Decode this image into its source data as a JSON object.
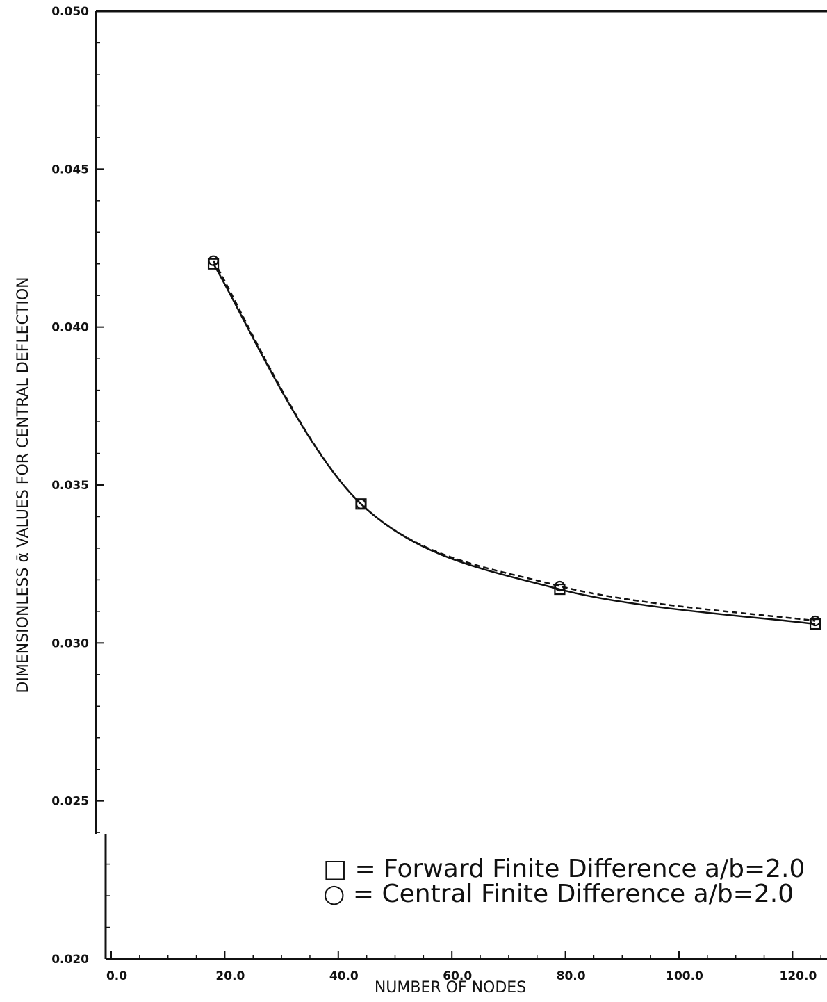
{
  "chart_data": {
    "type": "line",
    "title": "",
    "xlabel": "NUMBER OF NODES",
    "ylabel": "DIMENSIONLESS ᾱ VALUES FOR CENTRAL DEFLECTION",
    "xlim": [
      0,
      124
    ],
    "ylim": [
      0.02,
      0.05
    ],
    "x_ticks": [
      "0.0",
      "20.0",
      "40.0",
      "60.0",
      "80.0",
      "100.0",
      "120.0"
    ],
    "y_ticks": [
      "0.020",
      "0.025",
      "0.030",
      "0.035",
      "0.040",
      "0.045",
      "0.050"
    ],
    "grid": false,
    "legend_position": "bottom-right",
    "series": [
      {
        "name": "□ = Forward Finite Difference a/b=2.0",
        "marker": "square",
        "line_style": "solid",
        "x": [
          18,
          44,
          79,
          124
        ],
        "y": [
          0.042,
          0.0344,
          0.0317,
          0.0306
        ]
      },
      {
        "name": "○ = Central Finite Difference a/b=2.0",
        "marker": "circle",
        "line_style": "dashed",
        "x": [
          18,
          44,
          79,
          124
        ],
        "y": [
          0.0421,
          0.0344,
          0.0318,
          0.0307
        ]
      }
    ]
  }
}
